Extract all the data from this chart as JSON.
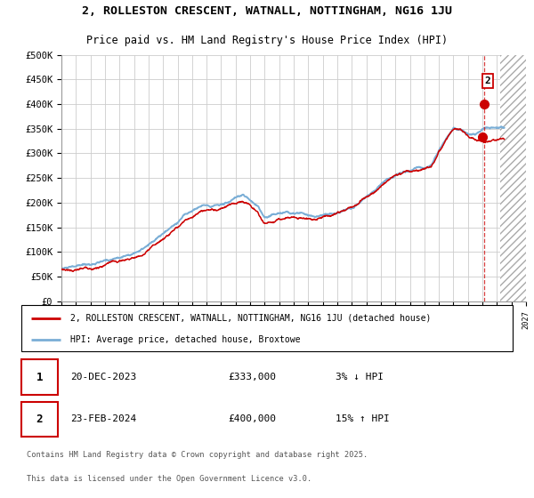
{
  "title_line1": "2, ROLLESTON CRESCENT, WATNALL, NOTTINGHAM, NG16 1JU",
  "title_line2": "Price paid vs. HM Land Registry's House Price Index (HPI)",
  "legend_red": "2, ROLLESTON CRESCENT, WATNALL, NOTTINGHAM, NG16 1JU (detached house)",
  "legend_blue": "HPI: Average price, detached house, Broxtowe",
  "transaction1_date": "20-DEC-2023",
  "transaction1_price": "£333,000",
  "transaction1_hpi": "3% ↓ HPI",
  "transaction2_date": "23-FEB-2024",
  "transaction2_price": "£400,000",
  "transaction2_hpi": "15% ↑ HPI",
  "footnote_line1": "Contains HM Land Registry data © Crown copyright and database right 2025.",
  "footnote_line2": "This data is licensed under the Open Government Licence v3.0.",
  "ylim": [
    0,
    500000
  ],
  "yticks": [
    0,
    50000,
    100000,
    150000,
    200000,
    250000,
    300000,
    350000,
    400000,
    450000,
    500000
  ],
  "xlim_start": 1995.0,
  "xlim_end": 2027.0,
  "hatch_start": 2025.2,
  "vline_x": 2024.12,
  "sale1_x": 2023.97,
  "sale1_y": 333000,
  "sale2_x": 2024.12,
  "sale2_y": 400000,
  "red_color": "#cc0000",
  "blue_color": "#7aaed6",
  "background_color": "#ffffff",
  "grid_color": "#cccccc"
}
